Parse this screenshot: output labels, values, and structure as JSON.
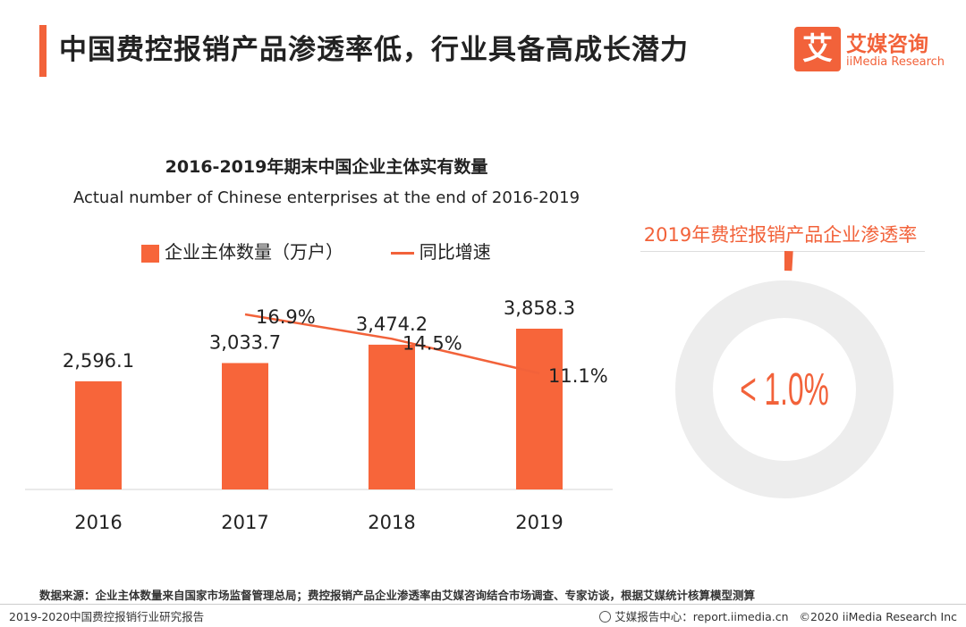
{
  "header": {
    "title": "中国费控报销产品渗透率低，行业具备高成长潜力",
    "logo_mark": "艾",
    "logo_cn": "艾媒咨询",
    "logo_en": "iiMedia Research"
  },
  "chart_data": {
    "type": "bar",
    "title": "2016-2019年期末中国企业主体实有数量",
    "subtitle": "Actual number of Chinese enterprises at the end of 2016-2019",
    "categories": [
      "2016",
      "2017",
      "2018",
      "2019"
    ],
    "series": [
      {
        "name": "企业主体数量（万户）",
        "type": "bar",
        "values": [
          2596.1,
          3033.7,
          3474.2,
          3858.3
        ],
        "labels": [
          "2,596.1",
          "3,033.7",
          "3,474.2",
          "3,858.3"
        ]
      },
      {
        "name": "同比增速",
        "type": "line",
        "x": [
          "2017",
          "2018",
          "2019"
        ],
        "values": [
          16.9,
          14.5,
          11.1
        ],
        "labels": [
          "16.9%",
          "14.5%",
          "11.1%"
        ]
      }
    ],
    "colors": {
      "bar": "#f7653a",
      "line": "#f2623a"
    }
  },
  "penetration": {
    "title": "2019年费控报销产品企业渗透率",
    "value_label": "< 1.0%",
    "value_fraction": 0.01,
    "ring_color": "#ededed",
    "accent_color": "#f2623a"
  },
  "footer": {
    "source": "数据来源：企业主体数量来自国家市场监督管理总局；费控报销产品企业渗透率由艾媒咨询结合市场调查、专家访谈，根据艾媒统计核算模型测算",
    "report_name": "2019-2020中国费控报销行业研究报告",
    "report_center": "艾媒报告中心：report.iimedia.cn",
    "copyright": "©2020  iiMedia Research  Inc"
  }
}
